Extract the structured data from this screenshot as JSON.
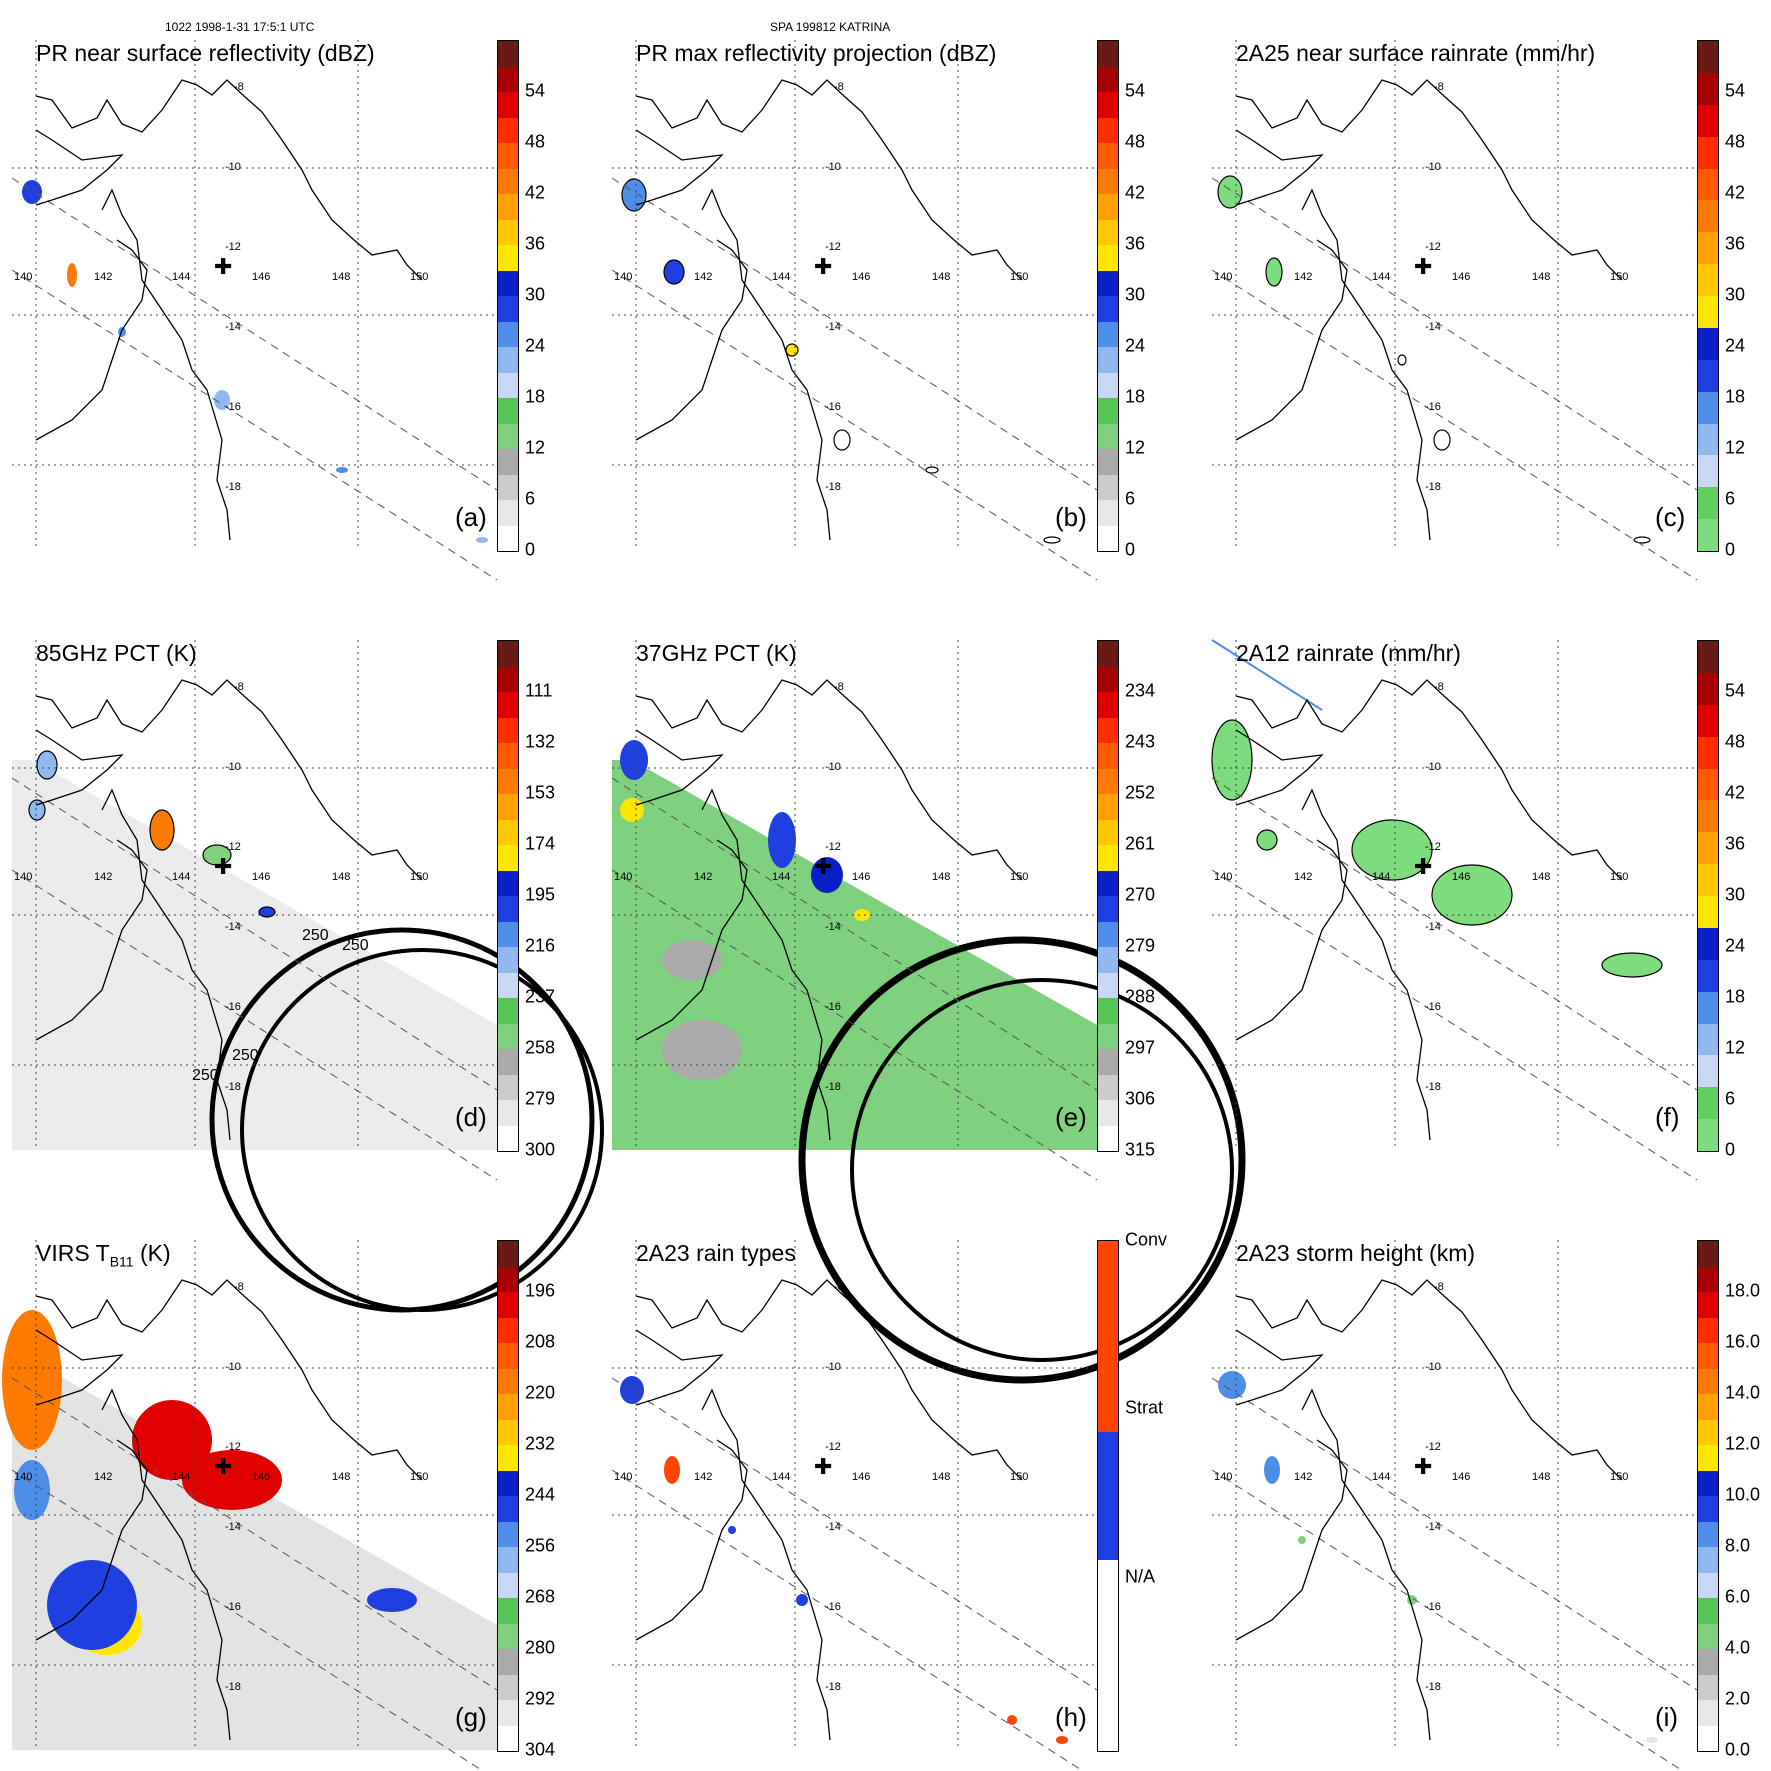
{
  "header": {
    "left": "1022 1998-1-31 17:5:1 UTC",
    "center": "SPA 199812 KATRINA"
  },
  "map_labels": {
    "lon": [
      "140",
      "142",
      "144",
      "146",
      "148",
      "150"
    ],
    "lat": [
      "-8",
      "-10",
      "-12",
      "-14",
      "-16",
      "-18"
    ]
  },
  "chart_data": [
    {
      "type": "heatmap",
      "panel": "a",
      "title": "PR near surface reflectivity (dBZ)",
      "label": "(a)",
      "colorbar": {
        "ticks": [
          "54",
          "48",
          "42",
          "36",
          "30",
          "24",
          "18",
          "12",
          "6",
          "0"
        ],
        "range": [
          0,
          60
        ]
      }
    },
    {
      "type": "heatmap",
      "panel": "b",
      "title": "PR max reflectivity projection (dBZ)",
      "label": "(b)",
      "colorbar": {
        "ticks": [
          "54",
          "48",
          "42",
          "36",
          "30",
          "24",
          "18",
          "12",
          "6",
          "0"
        ],
        "range": [
          0,
          60
        ]
      }
    },
    {
      "type": "heatmap",
      "panel": "c",
      "title": "2A25 near surface rainrate (mm/hr)",
      "label": "(c)",
      "colorbar": {
        "ticks": [
          "54",
          "48",
          "42",
          "36",
          "30",
          "24",
          "18",
          "12",
          "6",
          "0"
        ],
        "range": [
          0,
          60
        ]
      }
    },
    {
      "type": "heatmap",
      "panel": "d",
      "title": "85GHz PCT (K)",
      "label": "(d)",
      "colorbar": {
        "ticks": [
          "111",
          "132",
          "153",
          "174",
          "195",
          "216",
          "237",
          "258",
          "279",
          "300"
        ],
        "range": [
          90,
          300
        ]
      },
      "contours": [
        "250",
        "250",
        "250",
        "250"
      ]
    },
    {
      "type": "heatmap",
      "panel": "e",
      "title": "37GHz PCT (K)",
      "label": "(e)",
      "colorbar": {
        "ticks": [
          "234",
          "243",
          "252",
          "261",
          "270",
          "279",
          "288",
          "297",
          "306",
          "315"
        ],
        "range": [
          225,
          315
        ]
      }
    },
    {
      "type": "heatmap",
      "panel": "f",
      "title": "2A12 rainrate (mm/hr)",
      "label": "(f)",
      "colorbar": {
        "ticks": [
          "54",
          "48",
          "42",
          "36",
          "30",
          "24",
          "18",
          "12",
          "6",
          "0"
        ],
        "range": [
          0,
          60
        ]
      }
    },
    {
      "type": "heatmap",
      "panel": "g",
      "title": "VIRS T",
      "title_sub": "B11",
      "title_tail": " (K)",
      "label": "(g)",
      "colorbar": {
        "ticks": [
          "196",
          "208",
          "220",
          "232",
          "244",
          "256",
          "268",
          "280",
          "292",
          "304"
        ],
        "range": [
          184,
          304
        ]
      }
    },
    {
      "type": "heatmap",
      "panel": "h",
      "title": "2A23 rain types",
      "label": "(h)",
      "colorbar": {
        "ticks": [
          "Conv",
          "Strat",
          "N/A"
        ],
        "categories": [
          "Conv",
          "Strat",
          "N/A"
        ]
      }
    },
    {
      "type": "heatmap",
      "panel": "i",
      "title": "2A23 storm height (km)",
      "label": "(i)",
      "colorbar": {
        "ticks": [
          "18.0",
          "16.0",
          "14.0",
          "12.0",
          "10.0",
          "8.0",
          "6.0",
          "4.0",
          "2.0",
          "0.0"
        ],
        "range": [
          0,
          20
        ]
      }
    }
  ]
}
